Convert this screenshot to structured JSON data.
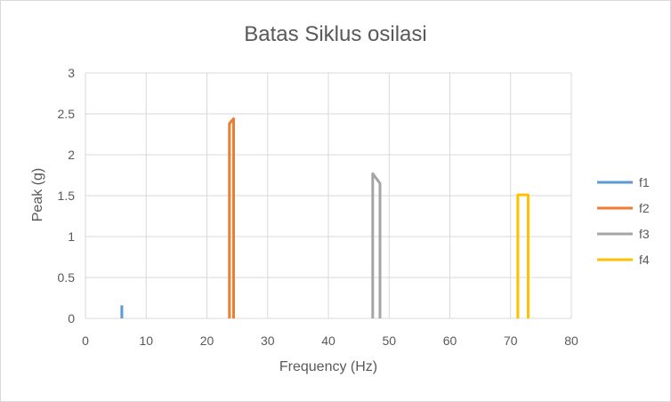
{
  "chart_data": {
    "type": "line",
    "title": "Batas Siklus osilasi",
    "xlabel": "Frequency (Hz)",
    "ylabel": "Peak (g)",
    "xlim": [
      0,
      80
    ],
    "ylim": [
      0,
      3
    ],
    "xticks": [
      0,
      10,
      20,
      30,
      40,
      50,
      60,
      70,
      80
    ],
    "yticks": [
      0,
      0.5,
      1,
      1.5,
      2,
      2.5,
      3
    ],
    "ytick_labels": [
      "0",
      "0.5",
      "1",
      "1.5",
      "2",
      "2.5",
      "3"
    ],
    "grid": true,
    "legend_position": "right",
    "series": [
      {
        "name": "f1",
        "color": "#5b9bd5",
        "x": [
          6,
          6
        ],
        "y": [
          0,
          0.16
        ]
      },
      {
        "name": "f2",
        "color": "#ed7d31",
        "x": [
          23.7,
          23.7,
          24.4,
          24.4
        ],
        "y": [
          0,
          2.38,
          2.44,
          0
        ]
      },
      {
        "name": "f3",
        "color": "#a5a5a5",
        "x": [
          47.3,
          47.3,
          48.5,
          48.5
        ],
        "y": [
          0,
          1.77,
          1.65,
          0
        ]
      },
      {
        "name": "f4",
        "color": "#ffc000",
        "x": [
          71.2,
          71.2,
          72.9,
          72.9
        ],
        "y": [
          0,
          1.51,
          1.51,
          0
        ]
      }
    ]
  }
}
